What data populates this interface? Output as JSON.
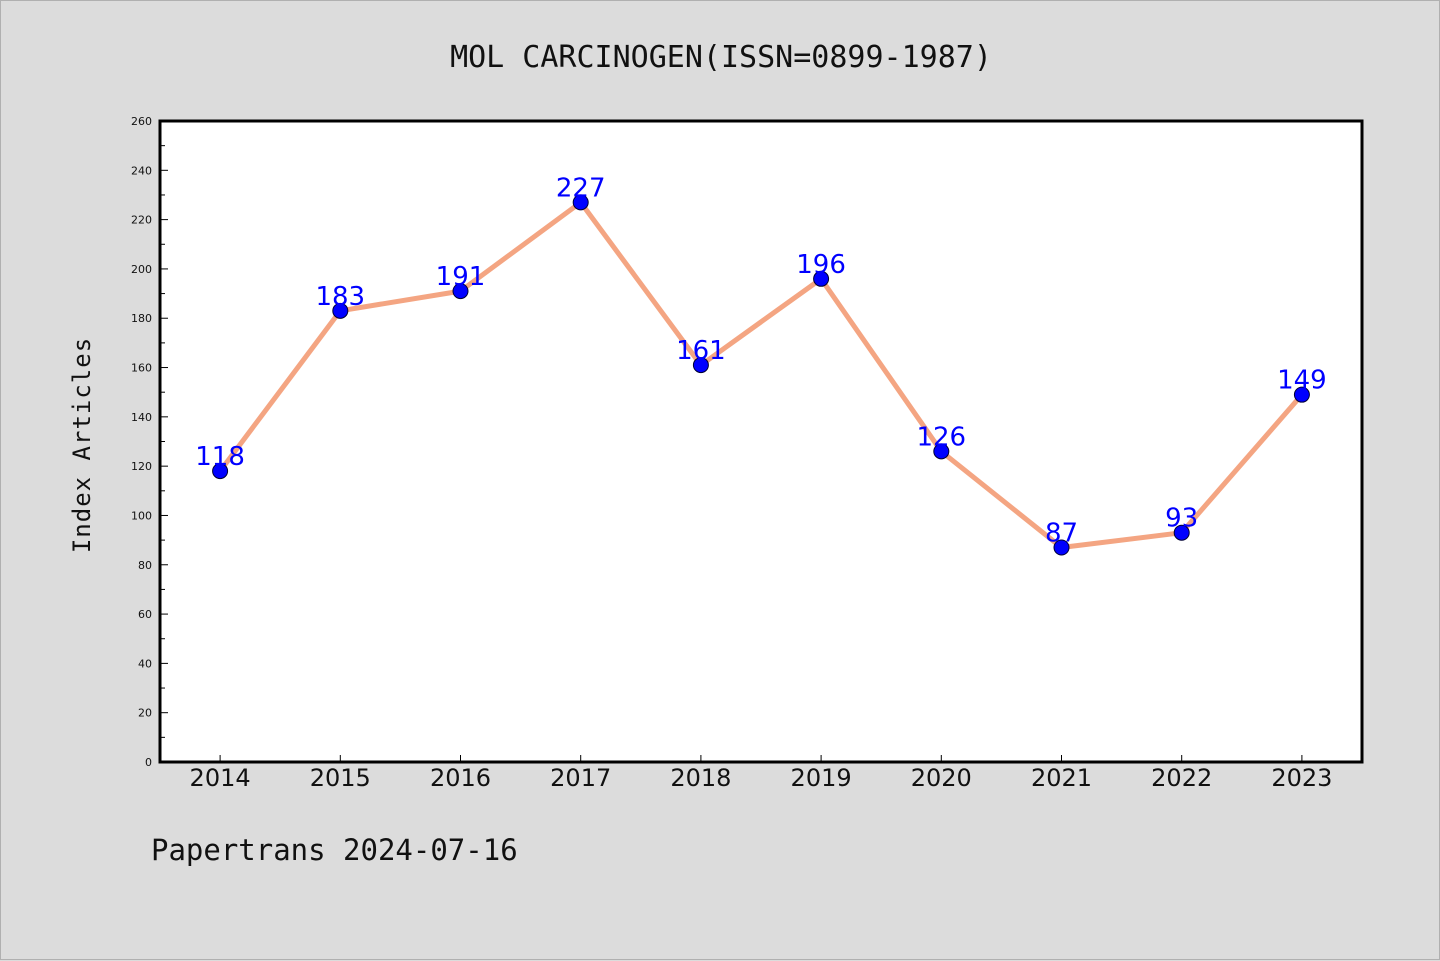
{
  "chart_data": {
    "type": "line",
    "title": "MOL CARCINOGEN(ISSN=0899-1987)",
    "ylabel": "Index Articles",
    "xlabel": "",
    "categories": [
      "2014",
      "2015",
      "2016",
      "2017",
      "2018",
      "2019",
      "2020",
      "2021",
      "2022",
      "2023"
    ],
    "series": [
      {
        "values": [
          118,
          183,
          191,
          227,
          161,
          196,
          126,
          87,
          93,
          149
        ]
      }
    ],
    "ylim": [
      0,
      260
    ],
    "ytick_step": 20,
    "grid": false,
    "legend": "none",
    "colors": {
      "line": "#f4a582",
      "marker": "#0000ff",
      "label": "#0000ff",
      "background": "#dcdcdc",
      "plot_area": "#ffffff"
    }
  },
  "footer": {
    "text": "Papertrans 2024-07-16"
  }
}
